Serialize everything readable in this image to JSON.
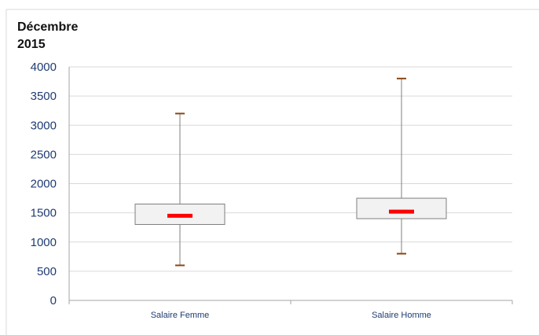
{
  "chart_data": {
    "type": "boxplot",
    "title": "Décembre\n2015",
    "xlabel": "",
    "ylabel": "",
    "ylim": [
      0,
      4000
    ],
    "yticks": [
      0,
      500,
      1000,
      1500,
      2000,
      2500,
      3000,
      3500,
      4000
    ],
    "ytick_labels": [
      "0",
      "500",
      "1000",
      "1500",
      "2000",
      "2500",
      "3000",
      "3500",
      "4000"
    ],
    "grid": true,
    "categories": [
      "Salaire Femme",
      "Salaire Homme"
    ],
    "boxes": [
      {
        "category": "Salaire Femme",
        "min": 600,
        "q1": 1300,
        "median": 1450,
        "q3": 1650,
        "max": 3200
      },
      {
        "category": "Salaire Homme",
        "min": 800,
        "q1": 1400,
        "median": 1520,
        "q3": 1750,
        "max": 3800
      }
    ],
    "colors": {
      "box_fill": "#f2f2f2",
      "box_stroke": "#7f7f7f",
      "median": "#ff0000",
      "whisker_cap": "#8b4513",
      "axis_text": "#1f3b73",
      "grid": "#d9d9d9"
    }
  }
}
